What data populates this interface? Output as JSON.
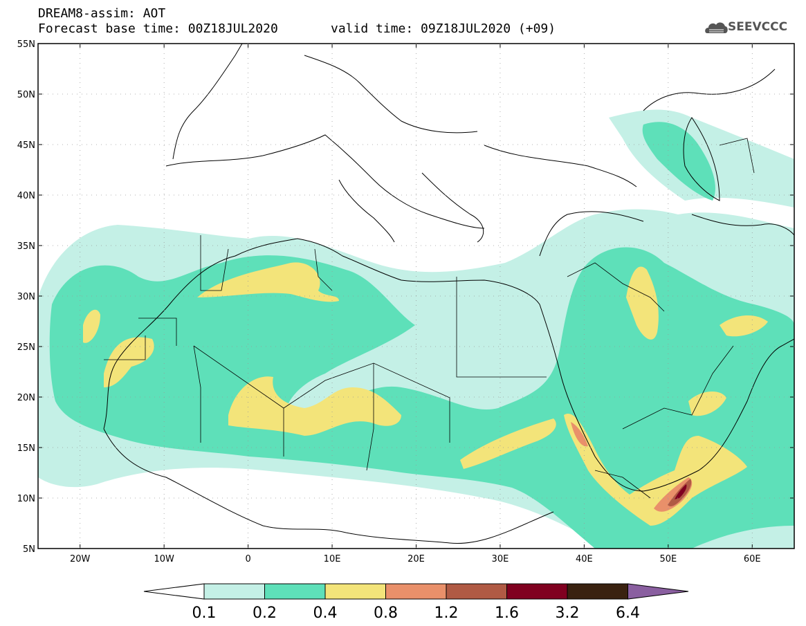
{
  "header": {
    "title_line1": "DREAM8-assim: AOT",
    "title_line2": "Forecast base time: 00Z18JUL2020",
    "valid_time": "valid time: 09Z18JUL2020 (+09)",
    "logo_text": "SEEVCCC"
  },
  "axes": {
    "lat_labels": [
      "55N",
      "50N",
      "45N",
      "40N",
      "35N",
      "30N",
      "25N",
      "20N",
      "15N",
      "10N",
      "5N"
    ],
    "lon_labels": [
      "20W",
      "10W",
      "0",
      "10E",
      "20E",
      "30E",
      "40E",
      "50E",
      "60E"
    ]
  },
  "legend": {
    "labels": [
      "0.1",
      "0.2",
      "0.4",
      "0.8",
      "1.2",
      "1.6",
      "3.2",
      "6.4"
    ],
    "colors": [
      "#ffffff",
      "#c4f0e6",
      "#5ee0b9",
      "#f3e47a",
      "#e9906a",
      "#b05a44",
      "#800020",
      "#3a2210",
      "#8a5fa0"
    ]
  },
  "map_palette": {
    "low": "#c4f0e6",
    "mid": "#5ee0b9",
    "high": "#f3e47a",
    "vhigh": "#e9906a",
    "extreme": "#b05a44",
    "peak": "#800020"
  }
}
